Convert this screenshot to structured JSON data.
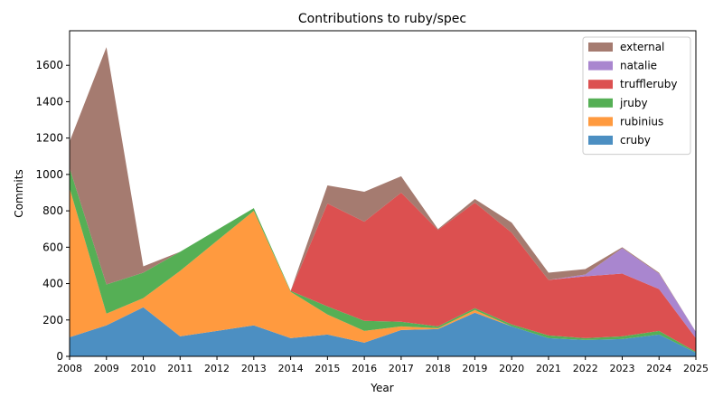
{
  "chart_data": {
    "type": "area",
    "stacked": true,
    "title": "Contributions to ruby/spec",
    "xlabel": "Year",
    "ylabel": "Commits",
    "x": [
      2008,
      2009,
      2010,
      2011,
      2012,
      2013,
      2014,
      2015,
      2016,
      2017,
      2018,
      2019,
      2020,
      2021,
      2022,
      2023,
      2024,
      2025
    ],
    "xlim": [
      2008,
      2025
    ],
    "ylim": [
      0,
      1790
    ],
    "yticks": [
      0,
      200,
      400,
      600,
      800,
      1000,
      1200,
      1400,
      1600
    ],
    "grid": false,
    "legend_position": "top-right",
    "series": [
      {
        "name": "cruby",
        "color": "#4c8fc2",
        "values": [
          105,
          170,
          270,
          110,
          140,
          170,
          100,
          120,
          75,
          145,
          150,
          240,
          165,
          100,
          90,
          95,
          120,
          20
        ]
      },
      {
        "name": "rubinius",
        "color": "#ff9a3f",
        "values": [
          820,
          65,
          50,
          360,
          495,
          630,
          255,
          110,
          65,
          20,
          5,
          15,
          0,
          0,
          0,
          0,
          0,
          0
        ]
      },
      {
        "name": "jruby",
        "color": "#55af55",
        "values": [
          110,
          160,
          140,
          105,
          60,
          15,
          5,
          45,
          55,
          25,
          10,
          10,
          10,
          15,
          10,
          15,
          20,
          5
        ]
      },
      {
        "name": "truffleruby",
        "color": "#dc5050",
        "values": [
          0,
          0,
          0,
          0,
          0,
          0,
          0,
          565,
          545,
          710,
          530,
          580,
          505,
          305,
          340,
          345,
          230,
          75
        ]
      },
      {
        "name": "natalie",
        "color": "#a986cf",
        "values": [
          0,
          0,
          0,
          0,
          0,
          0,
          0,
          0,
          0,
          0,
          0,
          0,
          0,
          0,
          10,
          140,
          85,
          35
        ]
      },
      {
        "name": "external",
        "color": "#a57b70",
        "values": [
          145,
          1305,
          35,
          0,
          0,
          0,
          0,
          100,
          165,
          90,
          5,
          20,
          55,
          40,
          30,
          5,
          5,
          0
        ]
      }
    ]
  }
}
